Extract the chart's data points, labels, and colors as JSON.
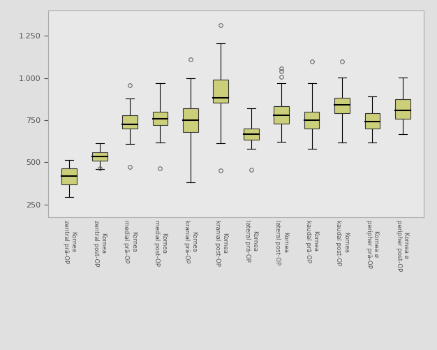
{
  "background_color": "#e0e0e0",
  "plot_area_color": "#e8e8e8",
  "box_facecolor": "#cccf7a",
  "box_edgecolor": "#333333",
  "median_color": "#000000",
  "whisker_color": "#000000",
  "flier_edgecolor": "#555555",
  "spine_color": "#aaaaaa",
  "tick_color": "#555555",
  "ylim": [
    175,
    1400
  ],
  "yticks": [
    250,
    500,
    750,
    1000,
    1250
  ],
  "ytick_labels": [
    "250",
    "500",
    "750",
    "1.000",
    "1.250"
  ],
  "labels": [
    "Kornea\nzentral prä-OP",
    "Kornea\nzentral post-OP",
    "Kornea\nmedial prä-OP",
    "Kornea\nmedial post-OP",
    "Kornea\nkranial prä-OP",
    "Kornea\nkranial post-OP",
    "Kornea\nlateral prä-OP",
    "Kornea\nlateral post-OP",
    "Kornea\nkaudal prä-OP",
    "Kornea\nkaudal post-OP",
    "Kornea ø\nperipher prä-OP",
    "Kornea ø\nperipher post-OP"
  ],
  "boxes": [
    {
      "q1": 370,
      "median": 416,
      "q3": 462,
      "whisker_low": 295,
      "whisker_high": 513,
      "fliers": []
    },
    {
      "q1": 510,
      "median": 534,
      "q3": 558,
      "whisker_low": 458,
      "whisker_high": 612,
      "fliers": [
        462
      ]
    },
    {
      "q1": 698,
      "median": 724,
      "q3": 778,
      "whisker_low": 608,
      "whisker_high": 880,
      "fliers": [
        470,
        958
      ]
    },
    {
      "q1": 722,
      "median": 758,
      "q3": 800,
      "whisker_low": 618,
      "whisker_high": 968,
      "fliers": [
        462
      ]
    },
    {
      "q1": 680,
      "median": 748,
      "q3": 822,
      "whisker_low": 380,
      "whisker_high": 1000,
      "fliers": [
        1112
      ]
    },
    {
      "q1": 852,
      "median": 882,
      "q3": 990,
      "whisker_low": 612,
      "whisker_high": 1205,
      "fliers": [
        1312,
        452
      ]
    },
    {
      "q1": 635,
      "median": 668,
      "q3": 700,
      "whisker_low": 580,
      "whisker_high": 822,
      "fliers": [
        455
      ]
    },
    {
      "q1": 730,
      "median": 778,
      "q3": 832,
      "whisker_low": 620,
      "whisker_high": 968,
      "fliers": [
        1008,
        1038,
        1058
      ]
    },
    {
      "q1": 698,
      "median": 748,
      "q3": 800,
      "whisker_low": 578,
      "whisker_high": 968,
      "fliers": [
        1098
      ]
    },
    {
      "q1": 792,
      "median": 840,
      "q3": 882,
      "whisker_low": 618,
      "whisker_high": 1002,
      "fliers": [
        1098
      ]
    },
    {
      "q1": 700,
      "median": 740,
      "q3": 790,
      "whisker_low": 618,
      "whisker_high": 892,
      "fliers": []
    },
    {
      "q1": 758,
      "median": 808,
      "q3": 872,
      "whisker_low": 668,
      "whisker_high": 1002,
      "fliers": []
    }
  ]
}
